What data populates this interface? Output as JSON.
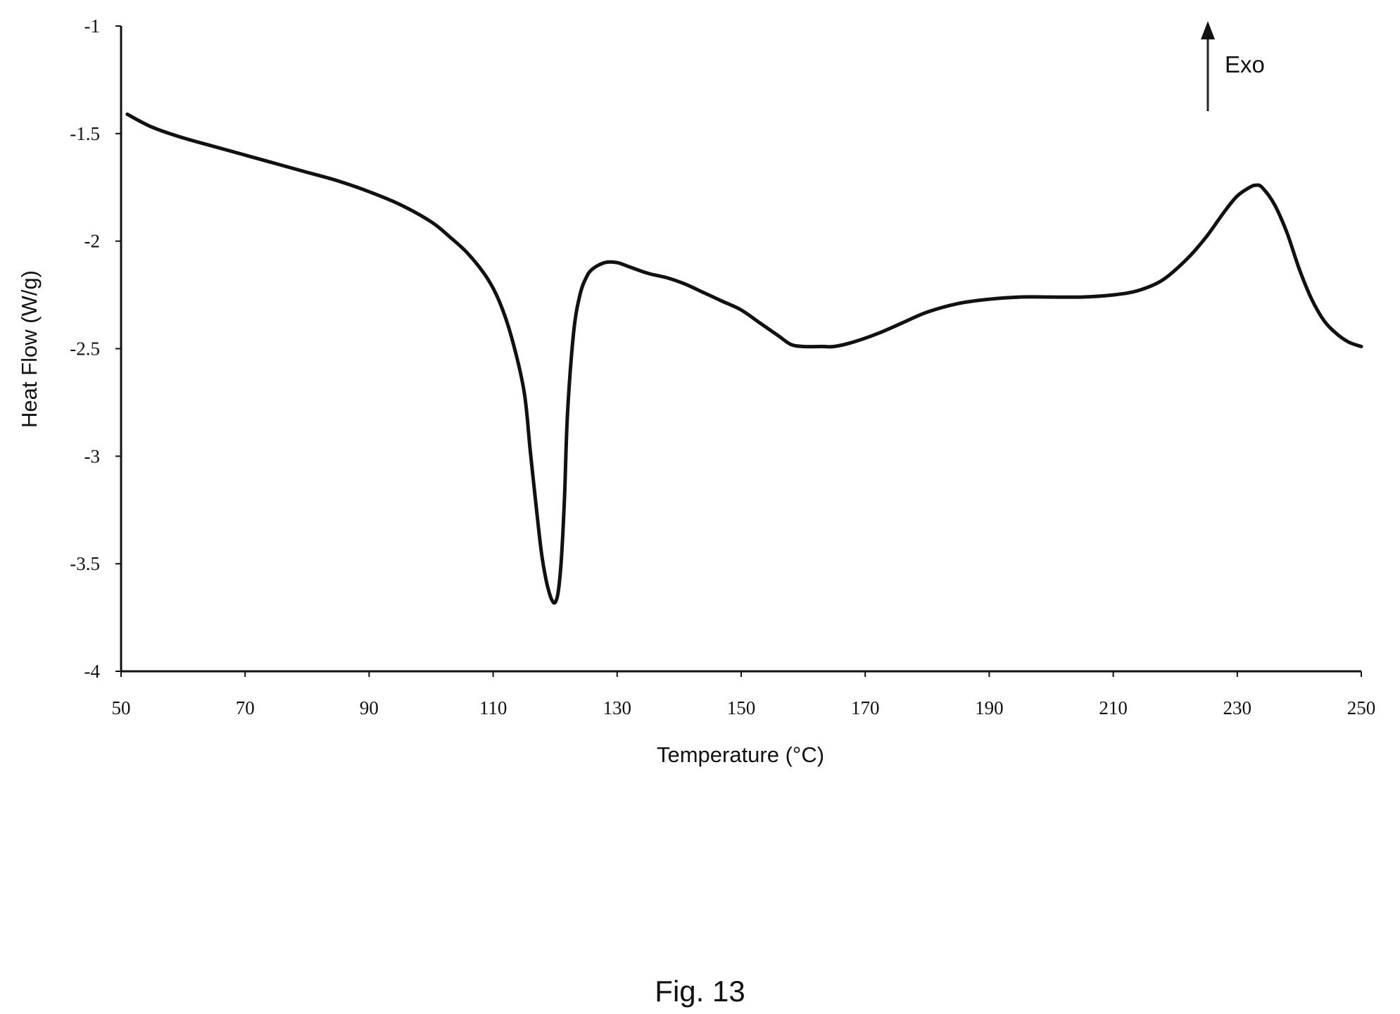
{
  "figure": {
    "caption": "Fig. 13"
  },
  "chart_data": {
    "type": "line",
    "title": "",
    "xlabel": "Temperature (°C)",
    "ylabel": "Heat Flow (W/g)",
    "xlim": [
      50,
      250
    ],
    "ylim": [
      -4,
      -1
    ],
    "x_ticks": [
      50,
      70,
      90,
      110,
      130,
      150,
      170,
      190,
      210,
      230,
      250
    ],
    "y_ticks": [
      -1,
      -1.5,
      -2,
      -2.5,
      -3,
      -3.5,
      -4
    ],
    "grid": false,
    "annotation": {
      "text": "Exo",
      "direction": "up"
    },
    "series": [
      {
        "color": "#111111",
        "x": [
          51,
          55,
          60,
          65,
          70,
          75,
          80,
          85,
          90,
          95,
          100,
          103,
          106,
          109,
          111,
          113,
          115,
          116,
          117,
          117.8,
          118.5,
          119,
          119.5,
          120,
          120.5,
          121,
          121.5,
          122,
          123,
          124,
          125,
          126,
          128,
          130,
          132,
          135,
          138,
          141,
          144,
          147,
          150,
          153,
          156,
          158,
          160,
          163,
          165,
          168,
          172,
          176,
          180,
          185,
          190,
          195,
          200,
          205,
          210,
          214,
          218,
          222,
          225,
          228,
          230,
          232,
          233,
          234,
          236,
          238,
          240,
          242,
          244,
          246,
          248,
          250
        ],
        "y": [
          -1.41,
          -1.47,
          -1.52,
          -1.56,
          -1.6,
          -1.64,
          -1.68,
          -1.72,
          -1.77,
          -1.83,
          -1.91,
          -1.98,
          -2.06,
          -2.17,
          -2.28,
          -2.45,
          -2.7,
          -2.98,
          -3.25,
          -3.45,
          -3.57,
          -3.63,
          -3.67,
          -3.68,
          -3.63,
          -3.48,
          -3.2,
          -2.8,
          -2.42,
          -2.25,
          -2.17,
          -2.13,
          -2.1,
          -2.1,
          -2.12,
          -2.15,
          -2.17,
          -2.2,
          -2.24,
          -2.28,
          -2.32,
          -2.38,
          -2.44,
          -2.48,
          -2.49,
          -2.49,
          -2.49,
          -2.47,
          -2.43,
          -2.38,
          -2.33,
          -2.29,
          -2.27,
          -2.26,
          -2.26,
          -2.26,
          -2.25,
          -2.23,
          -2.18,
          -2.08,
          -1.98,
          -1.86,
          -1.79,
          -1.75,
          -1.74,
          -1.75,
          -1.83,
          -1.96,
          -2.13,
          -2.27,
          -2.37,
          -2.43,
          -2.47,
          -2.49
        ]
      }
    ]
  }
}
